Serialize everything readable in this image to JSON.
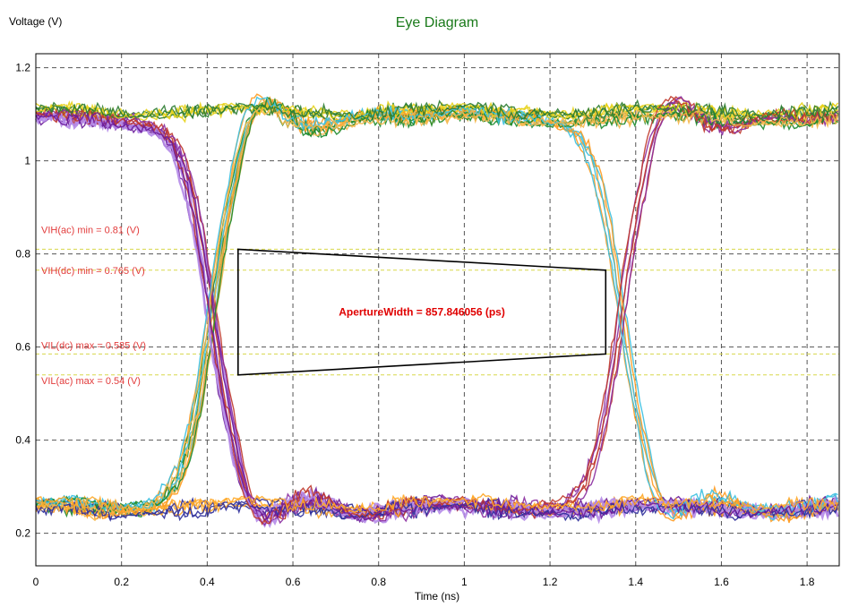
{
  "chart_data": {
    "type": "line",
    "title": "Eye Diagram",
    "xlabel": "Time (ns)",
    "ylabel": "Voltage (V)",
    "xlim": [
      0,
      1.875
    ],
    "ylim": [
      0.13,
      1.23
    ],
    "xticks": [
      0,
      0.2,
      0.4,
      0.6,
      0.8,
      1,
      1.2,
      1.4,
      1.6,
      1.8
    ],
    "xtick_labels": [
      "0",
      "0.2",
      "0.4",
      "0.6",
      "0.8",
      "1",
      "1.2",
      "1.4",
      "1.6",
      "1.8"
    ],
    "yticks": [
      0.2,
      0.4,
      0.6,
      0.8,
      1,
      1.2
    ],
    "ytick_labels": [
      "0.2",
      "0.4",
      "0.6",
      "0.8",
      "1",
      "1.2"
    ],
    "grid": true,
    "eye": {
      "high_level": 1.095,
      "low_level": 0.255,
      "crossings_ns": [
        0.41,
        1.365
      ],
      "overshoot_peak": 1.145,
      "undershoot_peak": 0.2
    },
    "series_colors": [
      "#ff9a1f",
      "#8b2ea0",
      "#1c8a2c",
      "#b58be8",
      "#e7d21a",
      "#2f2f9a",
      "#3ac0e0",
      "#c0392b",
      "#f5b74a",
      "#6a1b9a",
      "#2e7d32",
      "#ffa726"
    ],
    "threshold_lines": [
      {
        "label": "VIH(ac) min = 0.81 (V)",
        "value": 0.81
      },
      {
        "label": "VIH(dc) min = 0.765 (V)",
        "value": 0.765
      },
      {
        "label": "VIL(dc) max = 0.585 (V)",
        "value": 0.585
      },
      {
        "label": "VIL(ac) max = 0.54 (V)",
        "value": 0.54
      }
    ],
    "threshold_color": "#d8d84a",
    "threshold_label_color": "#e23b3b",
    "aperture": {
      "label": "ApertureWidth = 857.846056 (ps)",
      "left_x": 0.472,
      "right_x": 1.33,
      "left_top": 0.81,
      "left_bottom": 0.54,
      "right_top": 0.765,
      "right_bottom": 0.585
    }
  }
}
